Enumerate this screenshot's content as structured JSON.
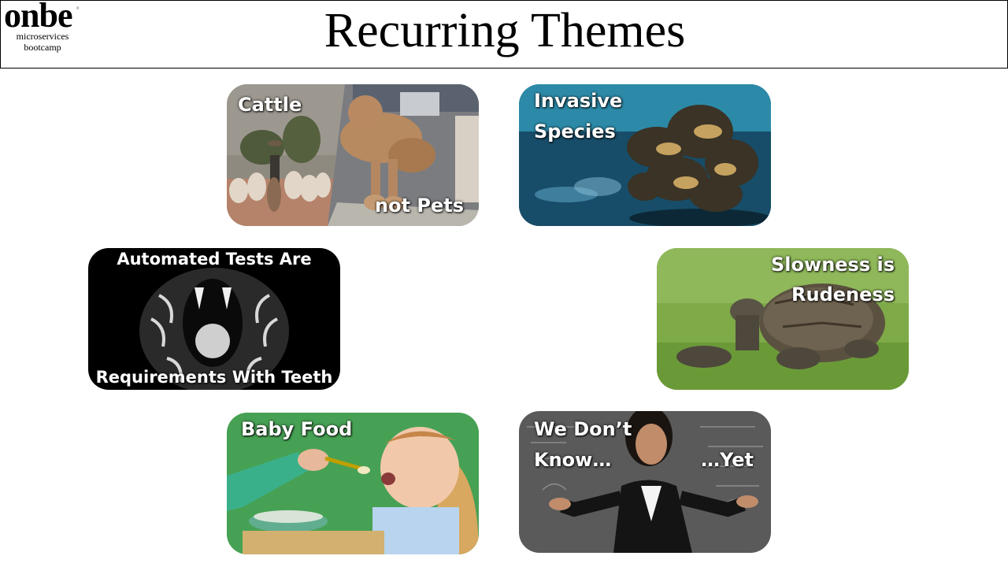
{
  "logo": {
    "wordmark": "onbe",
    "trademark": "°",
    "sub_line1": "microservices",
    "sub_line2": "bootcamp"
  },
  "slide": {
    "title": "Recurring Themes"
  },
  "tiles": {
    "cattle": {
      "label": "Cattle",
      "label2": "not Pets"
    },
    "invasive": {
      "line1": "Invasive",
      "line2": "Species"
    },
    "tests": {
      "top": "Automated Tests Are",
      "bottom": "Requirements With Teeth"
    },
    "slowness": {
      "line1": "Slowness is",
      "line2": "Rudeness"
    },
    "baby": {
      "label": "Baby Food"
    },
    "unknown": {
      "line1": "We Don’t",
      "line2": "Know…",
      "line3": "…Yet"
    }
  }
}
